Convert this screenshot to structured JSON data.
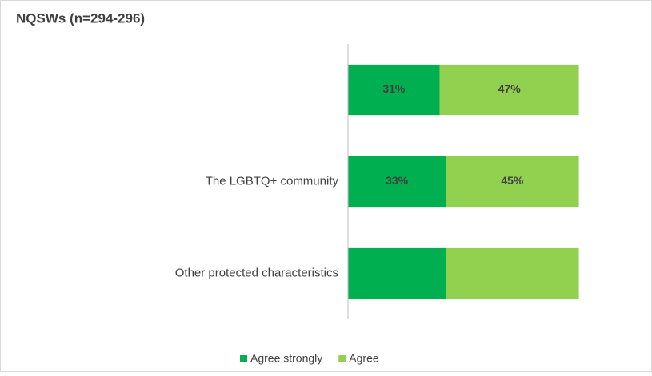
{
  "chart_data": {
    "type": "stacked-bar-horizontal",
    "title": "NQSWs (n=294-296)",
    "categories": [
      null,
      "The LGBTQ+ community",
      "Other protected characteristics"
    ],
    "series": [
      {
        "name": "Agree strongly",
        "color": "#00b050",
        "values": [
          31,
          33,
          33
        ],
        "value_labels": [
          "31%",
          "33%",
          null
        ]
      },
      {
        "name": "Agree",
        "color": "#92d050",
        "values": [
          47,
          45,
          45
        ],
        "value_labels": [
          "47%",
          "45%",
          null
        ]
      }
    ],
    "xlim": [
      0,
      100
    ],
    "legend": "bottom"
  }
}
